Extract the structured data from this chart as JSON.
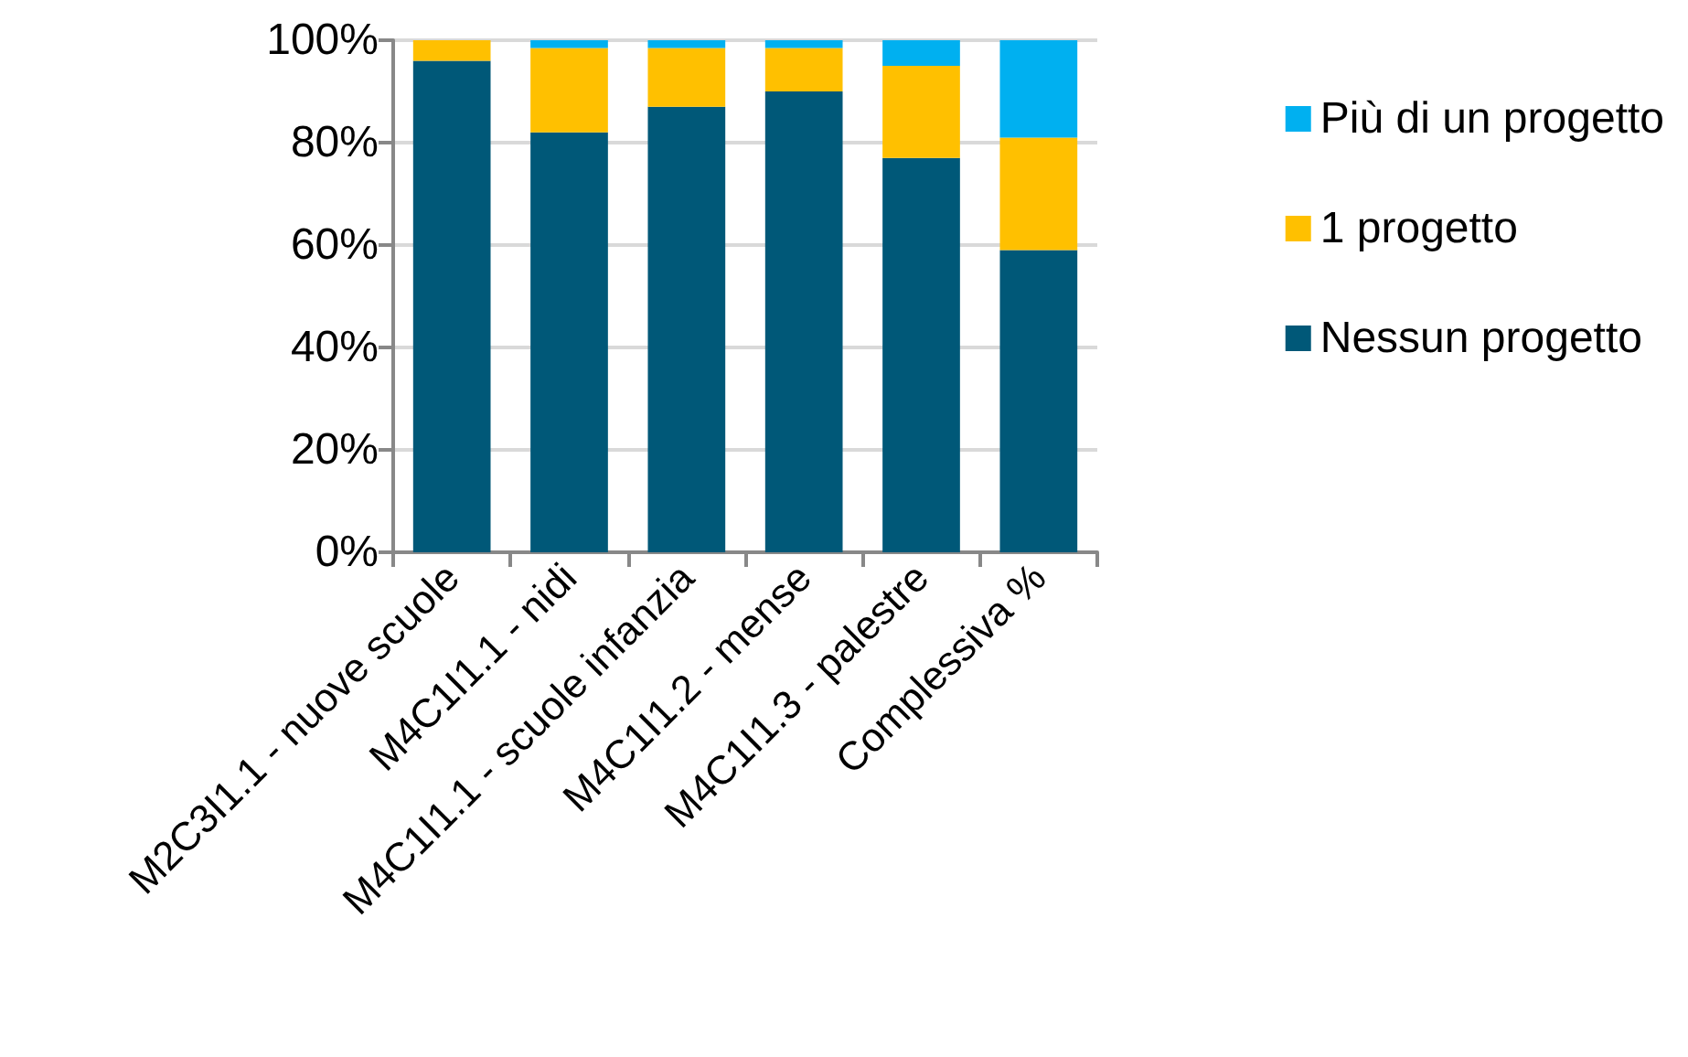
{
  "chart_data": {
    "type": "bar",
    "stacked": true,
    "categories": [
      "M2C3I1.1 - nuove scuole",
      "M4C1I1.1 - nidi",
      "M4C1I1.1 - scuole infanzia",
      "M4C1I1.2 - mense",
      "M4C1I1.3 - palestre",
      "Complessiva %"
    ],
    "series": [
      {
        "name": "Nessun progetto",
        "color": "#005878",
        "values": [
          96,
          82,
          87,
          90,
          77,
          59
        ]
      },
      {
        "name": "1 progetto",
        "color": "#ffc000",
        "values": [
          4,
          16.5,
          11.5,
          8.5,
          18,
          22
        ]
      },
      {
        "name": "Più di un progetto",
        "color": "#00b0f0",
        "values": [
          0,
          1.5,
          1.5,
          1.5,
          5,
          19
        ]
      }
    ],
    "ylim": [
      0,
      100
    ],
    "yticks": [
      {
        "value": 0,
        "label": "0%"
      },
      {
        "value": 20,
        "label": "20%"
      },
      {
        "value": 40,
        "label": "40%"
      },
      {
        "value": 60,
        "label": "60%"
      },
      {
        "value": 80,
        "label": "80%"
      },
      {
        "value": 100,
        "label": "100%"
      }
    ],
    "grid": "y",
    "legend": "right"
  }
}
